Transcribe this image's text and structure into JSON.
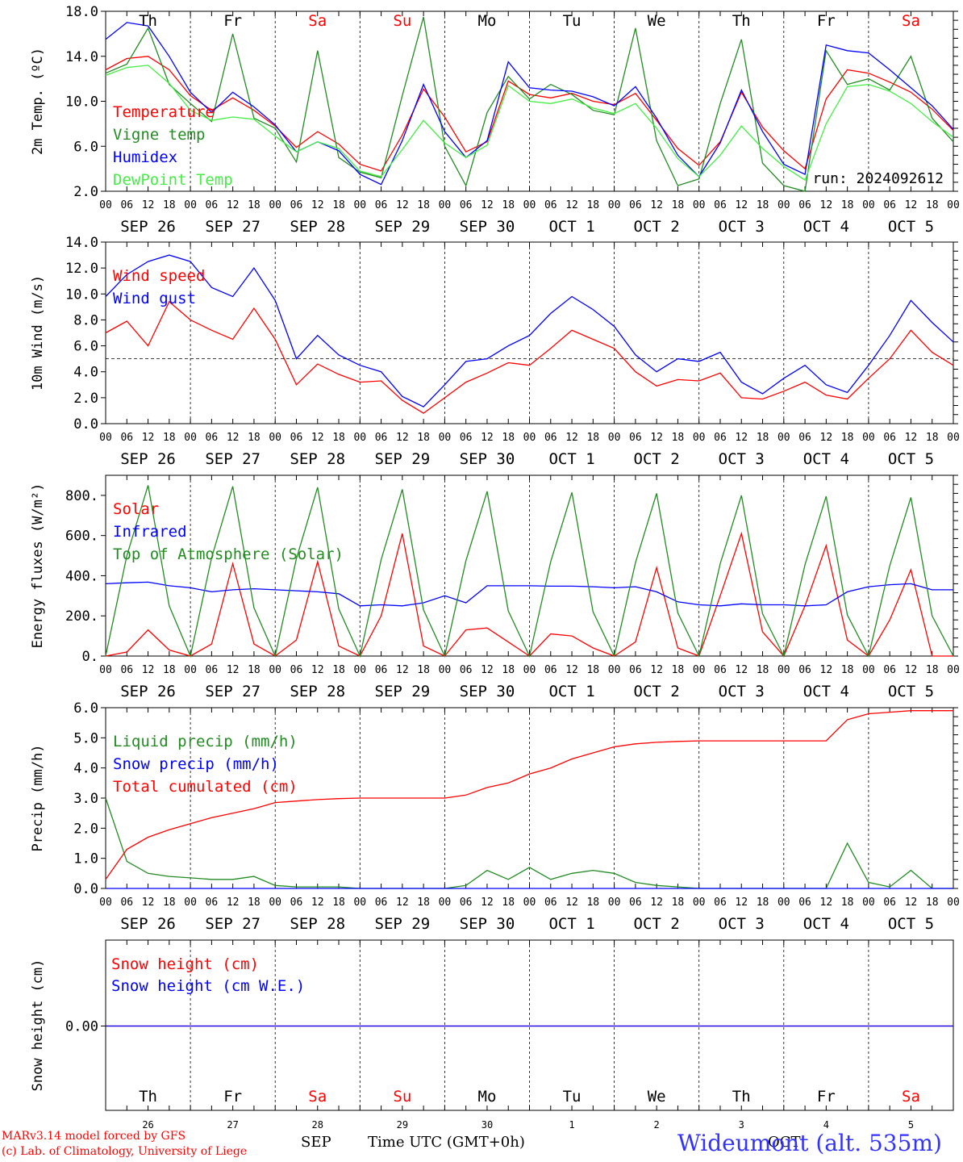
{
  "chart_data": [
    {
      "type": "line",
      "ylabel": "2m Temp. (ºC)",
      "ylim": [
        2.0,
        18.0
      ],
      "yticks": [
        "2.0",
        "6.0",
        "10.0",
        "14.0",
        "18.0"
      ],
      "day_top_labels": [
        "Th",
        "Fr",
        "Sa",
        "Su",
        "Mo",
        "Tu",
        "We",
        "Th",
        "Fr",
        "Sa"
      ],
      "annotation": "run: 2024092612",
      "x_hours": [
        0,
        6,
        12,
        18,
        24,
        30,
        36,
        42,
        48,
        54,
        60,
        66,
        72,
        78,
        84,
        90,
        96,
        102,
        108,
        114,
        120,
        126,
        132,
        138,
        144,
        150,
        156,
        162,
        168,
        174,
        180,
        186,
        192,
        198,
        204,
        210,
        216,
        222,
        228,
        234,
        240
      ],
      "series": [
        {
          "name": "Temperature",
          "color": "#ff0000",
          "values": [
            12.8,
            13.8,
            14.0,
            12.8,
            10.5,
            9.2,
            10.3,
            9.2,
            7.8,
            5.9,
            7.3,
            6.2,
            4.4,
            3.8,
            7.0,
            11.1,
            8.6,
            5.5,
            6.4,
            11.8,
            10.6,
            10.3,
            10.7,
            10.0,
            9.7,
            10.7,
            8.3,
            5.8,
            4.3,
            6.4,
            10.8,
            7.7,
            5.6,
            4.0,
            10.2,
            12.8,
            12.5,
            11.7,
            10.8,
            9.3,
            7.4
          ]
        },
        {
          "name": "Vigne temp",
          "color": "#228b22",
          "values": [
            12.5,
            13.3,
            16.5,
            11.5,
            9.8,
            8.2,
            16.0,
            8.5,
            7.6,
            4.6,
            14.5,
            5.0,
            3.7,
            3.2,
            10.5,
            17.5,
            6.0,
            2.5,
            9.0,
            12.2,
            10.2,
            11.5,
            10.6,
            9.2,
            8.8,
            16.5,
            6.5,
            2.5,
            3.1,
            9.8,
            15.5,
            4.5,
            2.5,
            1.5,
            14.5,
            11.5,
            12.0,
            11.0,
            14.0,
            8.5,
            6.4
          ]
        },
        {
          "name": "Humidex",
          "color": "#0000ff",
          "values": [
            15.5,
            17.0,
            16.7,
            14.0,
            10.8,
            9.0,
            10.8,
            9.5,
            7.9,
            5.5,
            6.4,
            5.6,
            3.5,
            2.6,
            6.5,
            11.5,
            7.3,
            5.0,
            6.5,
            13.5,
            11.2,
            11.0,
            10.9,
            10.4,
            9.6,
            11.3,
            8.5,
            5.2,
            3.3,
            6.3,
            11.0,
            7.3,
            4.4,
            3.5,
            15.0,
            14.5,
            14.3,
            12.8,
            11.2,
            9.6,
            7.5
          ]
        },
        {
          "name": "DewPoint Temp",
          "color": "#44ee44",
          "values": [
            12.3,
            13.0,
            13.2,
            11.6,
            9.2,
            8.3,
            8.6,
            8.4,
            6.9,
            5.5,
            6.4,
            5.8,
            3.8,
            3.3,
            5.7,
            8.3,
            6.3,
            5.0,
            6.1,
            11.4,
            10.0,
            9.8,
            10.2,
            9.4,
            8.9,
            9.8,
            7.6,
            4.9,
            3.3,
            5.2,
            7.8,
            5.8,
            4.2,
            3.0,
            8.0,
            11.3,
            11.5,
            10.9,
            9.8,
            8.2,
            6.8
          ]
        }
      ]
    },
    {
      "type": "line",
      "ylabel": "10m Wind (m/s)",
      "ylim": [
        0.0,
        14.0
      ],
      "yticks": [
        "0.0",
        "2.0",
        "4.0",
        "6.0",
        "8.0",
        "10.0",
        "12.0",
        "14.0"
      ],
      "hline": 5.0,
      "x_hours": [
        0,
        6,
        12,
        18,
        24,
        30,
        36,
        42,
        48,
        54,
        60,
        66,
        72,
        78,
        84,
        90,
        96,
        102,
        108,
        114,
        120,
        126,
        132,
        138,
        144,
        150,
        156,
        162,
        168,
        174,
        180,
        186,
        192,
        198,
        204,
        210,
        216,
        222,
        228,
        234,
        240
      ],
      "series": [
        {
          "name": "Wind speed",
          "color": "#ff0000",
          "values": [
            7.0,
            7.9,
            6.0,
            9.4,
            8.0,
            7.2,
            6.5,
            8.9,
            6.5,
            3.0,
            4.6,
            3.8,
            3.2,
            3.3,
            1.8,
            0.8,
            2.0,
            3.2,
            3.9,
            4.7,
            4.5,
            5.8,
            7.2,
            6.5,
            5.8,
            4.0,
            2.9,
            3.4,
            3.3,
            3.9,
            2.0,
            1.9,
            2.5,
            3.2,
            2.2,
            1.9,
            3.5,
            5.0,
            7.2,
            5.5,
            4.5
          ]
        },
        {
          "name": "Wind gust",
          "color": "#0000ff",
          "values": [
            9.8,
            11.5,
            12.5,
            13.0,
            12.5,
            10.5,
            9.8,
            12.0,
            9.5,
            5.0,
            6.8,
            5.3,
            4.5,
            4.0,
            2.1,
            1.3,
            3.0,
            4.8,
            5.0,
            6.0,
            6.8,
            8.5,
            9.8,
            8.8,
            7.5,
            5.3,
            4.0,
            5.0,
            4.8,
            5.5,
            3.2,
            2.3,
            3.5,
            4.5,
            3.0,
            2.4,
            4.5,
            6.8,
            9.5,
            7.8,
            6.3
          ]
        }
      ]
    },
    {
      "type": "line",
      "ylabel": "Energy fluxes (W/m²)",
      "ylim": [
        0,
        900
      ],
      "yticks": [
        "0.",
        "200.",
        "400.",
        "600.",
        "800."
      ],
      "x_hours": [
        0,
        6,
        12,
        18,
        24,
        30,
        36,
        42,
        48,
        54,
        60,
        66,
        72,
        78,
        84,
        90,
        96,
        102,
        108,
        114,
        120,
        126,
        132,
        138,
        144,
        150,
        156,
        162,
        168,
        174,
        180,
        186,
        192,
        198,
        204,
        210,
        216,
        222,
        228,
        234,
        240
      ],
      "series": [
        {
          "name": "Solar",
          "color": "#ff0000",
          "values": [
            0,
            20,
            130,
            30,
            0,
            60,
            460,
            60,
            0,
            80,
            470,
            50,
            0,
            200,
            610,
            50,
            0,
            130,
            140,
            70,
            0,
            110,
            100,
            40,
            0,
            70,
            440,
            40,
            0,
            300,
            610,
            120,
            0,
            250,
            550,
            80,
            0,
            180,
            430,
            0,
            0
          ]
        },
        {
          "name": "Infrared",
          "color": "#0000ff",
          "values": [
            360,
            365,
            368,
            350,
            340,
            320,
            330,
            335,
            330,
            325,
            320,
            310,
            250,
            255,
            250,
            265,
            300,
            265,
            350,
            350,
            350,
            348,
            348,
            345,
            340,
            345,
            320,
            270,
            255,
            250,
            260,
            255,
            255,
            250,
            255,
            320,
            345,
            355,
            360,
            330,
            330
          ]
        },
        {
          "name": "Top of Atmosphere (Solar)",
          "color": "#228b22",
          "values": [
            0,
            500,
            850,
            250,
            0,
            490,
            845,
            240,
            0,
            485,
            840,
            235,
            0,
            480,
            830,
            230,
            0,
            475,
            820,
            225,
            0,
            470,
            815,
            220,
            0,
            465,
            810,
            215,
            0,
            460,
            800,
            210,
            0,
            455,
            795,
            205,
            0,
            450,
            790,
            200,
            0
          ]
        }
      ]
    },
    {
      "type": "line",
      "ylabel": "Precip (mm/h)",
      "ylim": [
        0.0,
        6.0
      ],
      "yticks": [
        "0.0",
        "1.0",
        "2.0",
        "3.0",
        "4.0",
        "5.0",
        "6.0"
      ],
      "x_hours": [
        0,
        6,
        12,
        18,
        24,
        30,
        36,
        42,
        48,
        54,
        60,
        66,
        72,
        78,
        84,
        90,
        96,
        102,
        108,
        114,
        120,
        126,
        132,
        138,
        144,
        150,
        156,
        162,
        168,
        174,
        180,
        186,
        192,
        198,
        204,
        210,
        216,
        222,
        228,
        234,
        240
      ],
      "series": [
        {
          "name": "Liquid precip (mm/h)",
          "color": "#228b22",
          "values": [
            3.0,
            0.9,
            0.5,
            0.4,
            0.35,
            0.3,
            0.3,
            0.4,
            0.1,
            0.05,
            0.05,
            0.05,
            0,
            0,
            0,
            0,
            0,
            0.1,
            0.6,
            0.3,
            0.7,
            0.3,
            0.5,
            0.6,
            0.5,
            0.2,
            0.1,
            0.05,
            0,
            0,
            0,
            0,
            0,
            0,
            0,
            1.5,
            0.2,
            0.05,
            0.6,
            0,
            0
          ]
        },
        {
          "name": "Snow precip (mm/h)",
          "color": "#0000ff",
          "values": [
            0,
            0,
            0,
            0,
            0,
            0,
            0,
            0,
            0,
            0,
            0,
            0,
            0,
            0,
            0,
            0,
            0,
            0,
            0,
            0,
            0,
            0,
            0,
            0,
            0,
            0,
            0,
            0,
            0,
            0,
            0,
            0,
            0,
            0,
            0,
            0,
            0,
            0,
            0,
            0,
            0
          ]
        },
        {
          "name": "Total cumulated (cm)",
          "color": "#ff0000",
          "values": [
            0.3,
            1.3,
            1.7,
            1.95,
            2.15,
            2.35,
            2.5,
            2.65,
            2.85,
            2.9,
            2.95,
            2.98,
            3.0,
            3.0,
            3.0,
            3.0,
            3.0,
            3.1,
            3.35,
            3.5,
            3.8,
            4.0,
            4.3,
            4.5,
            4.7,
            4.8,
            4.85,
            4.88,
            4.9,
            4.9,
            4.9,
            4.9,
            4.9,
            4.9,
            4.9,
            5.6,
            5.8,
            5.85,
            5.9,
            5.9,
            5.9
          ]
        }
      ]
    },
    {
      "type": "line",
      "ylabel": "Snow height (cm)",
      "yticks": [
        "0.00"
      ],
      "x_hours": [
        0,
        240
      ],
      "series": [
        {
          "name": "Snow height (cm)",
          "color": "#ff0000",
          "values": [
            0,
            0
          ]
        },
        {
          "name": "Snow height (cm W.E.)",
          "color": "#0000ff",
          "values": [
            0,
            0
          ]
        }
      ],
      "day_labels": [
        "Th",
        "Fr",
        "Sa",
        "Su",
        "Mo",
        "Tu",
        "We",
        "Th",
        "Fr",
        "Sa"
      ],
      "day_numbers": [
        "26",
        "27",
        "28",
        "29",
        "30",
        "1",
        "2",
        "3",
        "4",
        "5"
      ]
    }
  ],
  "x_hour_ticks": [
    "00",
    "06",
    "12",
    "18"
  ],
  "date_labels": [
    "SEP 26",
    "SEP 27",
    "SEP 28",
    "SEP 29",
    "SEP 30",
    "OCT  1",
    "OCT  2",
    "OCT  3",
    "OCT  4",
    "OCT  5"
  ],
  "weekend_color": "#ff0000",
  "weekend_days": [
    "Sa",
    "Su"
  ],
  "footer": {
    "credit1": "MARv3.14 model forced by GFS",
    "credit2": "(c) Lab. of Climatology, University of Liege",
    "xlabel": "Time UTC (GMT+0h)",
    "sep": "SEP",
    "oct": "OCT",
    "station": "Wideumont (alt. 535m)"
  }
}
